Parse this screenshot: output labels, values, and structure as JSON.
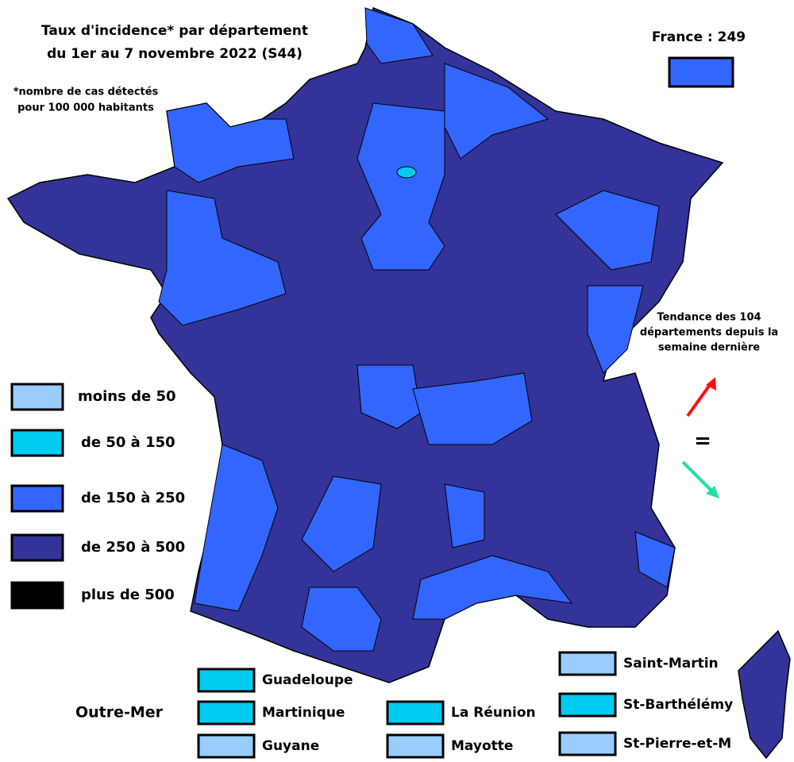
{
  "header": {
    "title_lines": [
      "Taux d'incidence* par département",
      "du 1er au 7 novembre 2022 (S44)"
    ],
    "note_lines": [
      "*nombre de cas détectés",
      "pour 100 000 habitants"
    ]
  },
  "france": {
    "label": "France : 249",
    "color": "#3366ff"
  },
  "legend": [
    {
      "label": "moins de 50",
      "color": "#99ccff"
    },
    {
      "label": "de 50 à 150",
      "color": "#00ccf0"
    },
    {
      "label": "de 150 à 250",
      "color": "#3366ff"
    },
    {
      "label": "de 250 à 500",
      "color": "#333399"
    },
    {
      "label": "plus de 500",
      "color": "#000000"
    }
  ],
  "trend": {
    "text_lines": [
      "Tendance des 104",
      "départements depuis la",
      "semaine dernière"
    ],
    "equal": "="
  },
  "overseas": {
    "title": "Outre-Mer",
    "items": [
      {
        "label": "Guadeloupe",
        "color": "#00ccf0"
      },
      {
        "label": "Martinique",
        "color": "#00ccf0"
      },
      {
        "label": "Guyane",
        "color": "#99ccff"
      },
      {
        "label": "La Réunion",
        "color": "#00ccf0"
      },
      {
        "label": "Mayotte",
        "color": "#99ccff"
      },
      {
        "label": "Saint-Martin",
        "color": "#99ccff"
      },
      {
        "label": "St-Barthélémy",
        "color": "#00ccf0"
      },
      {
        "label": "St-Pierre-et-M",
        "color": "#99ccff"
      }
    ]
  }
}
